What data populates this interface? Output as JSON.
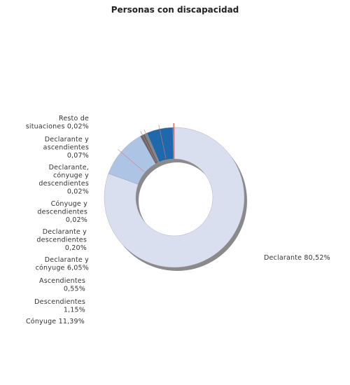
{
  "chart_data": {
    "type": "pie",
    "variant": "donut",
    "title": "Personas con discapacidad",
    "slices": [
      {
        "name": "Declarante",
        "value": 80.52,
        "color": "#dadff0",
        "label": [
          "Declarante 80,52%"
        ]
      },
      {
        "name": "Cónyuge",
        "value": 11.39,
        "color": "#adc4e4",
        "label": [
          "Cónyuge 11,39%"
        ]
      },
      {
        "name": "Descendientes",
        "value": 1.15,
        "color": "#666666",
        "label": [
          "Descendientes",
          "1,15%"
        ]
      },
      {
        "name": "Ascendientes",
        "value": 0.55,
        "color": "#5a8a96",
        "label": [
          "Ascendientes",
          "0,55%"
        ]
      },
      {
        "name": "Declarante y cónyuge",
        "value": 6.05,
        "color": "#1f68ab",
        "label": [
          "Declarante y",
          "cónyuge 6,05%"
        ]
      },
      {
        "name": "Declarante y descendientes",
        "value": 0.2,
        "color": "#3d3d3d",
        "label": [
          "Declarante y",
          "descendientes",
          "0,20%"
        ]
      },
      {
        "name": "Cónyuge y descendientes",
        "value": 0.02,
        "color": "#9e9e9e",
        "label": [
          "Cónyuge y",
          "descendientes",
          "0,02%"
        ]
      },
      {
        "name": "Declarante, cónyuge y descendientes",
        "value": 0.02,
        "color": "#777777",
        "label": [
          "Declarante,",
          "cónyuge y",
          "descendientes",
          "0,02%"
        ]
      },
      {
        "name": "Declarante y ascendientes",
        "value": 0.07,
        "color": "#bbbbbb",
        "label": [
          "Declarante y",
          "ascendientes",
          "0,07%"
        ]
      },
      {
        "name": "Resto de situaciones",
        "value": 0.02,
        "color": "#555555",
        "label": [
          "Resto de",
          "situaciones 0,02%"
        ]
      }
    ],
    "legend": "none"
  }
}
